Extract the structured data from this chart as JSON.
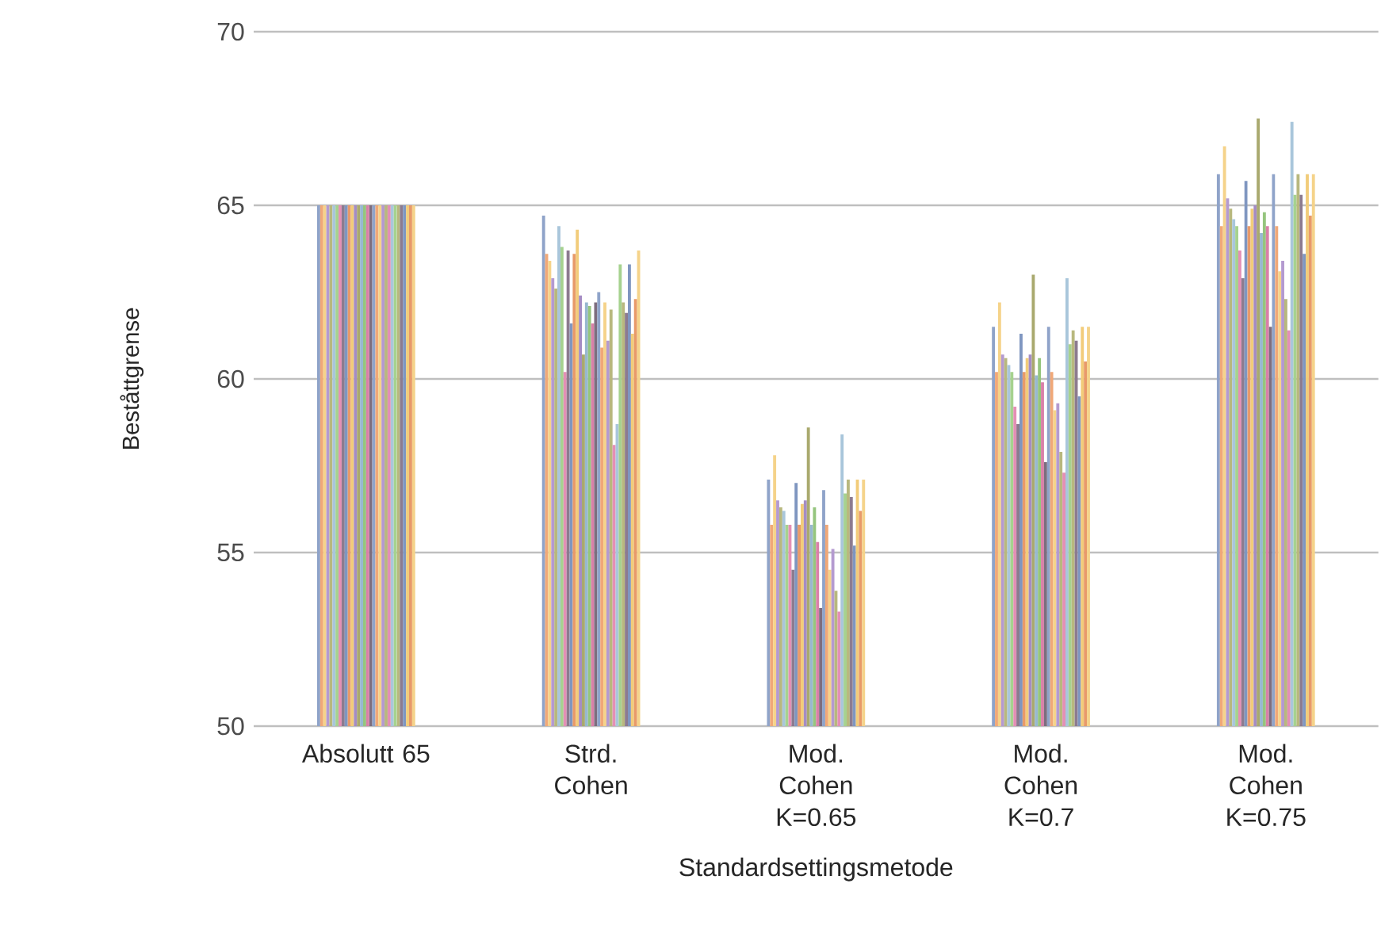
{
  "chart_data": {
    "type": "bar",
    "xlabel": "Standardsettingsmetode",
    "ylabel": "Beståttgrense",
    "categories": [
      "Absolutt 65",
      "Strd. Cohen",
      "Mod. Cohen K=0.65",
      "Mod. Cohen K=0.7",
      "Mod. Cohen K=0.75"
    ],
    "ylim": [
      50,
      70
    ],
    "yticks": [
      50,
      55,
      60,
      65,
      70
    ],
    "grid": "y",
    "series": [
      {
        "color": "#8fa3c9",
        "values": [
          65,
          64.7,
          57.1,
          61.5,
          65.9
        ]
      },
      {
        "color": "#f0a878",
        "values": [
          65,
          63.6,
          55.8,
          60.2,
          64.4
        ]
      },
      {
        "color": "#f5d38a",
        "values": [
          65,
          63.4,
          57.8,
          62.2,
          66.7
        ]
      },
      {
        "color": "#b49ad0",
        "values": [
          65,
          62.9,
          56.5,
          60.7,
          65.2
        ]
      },
      {
        "color": "#b8b87e",
        "values": [
          65,
          62.6,
          56.3,
          60.6,
          64.9
        ]
      },
      {
        "color": "#a9c6db",
        "values": [
          65,
          64.4,
          56.2,
          60.4,
          64.6
        ]
      },
      {
        "color": "#a6d28f",
        "values": [
          65,
          63.8,
          55.8,
          60.2,
          64.4
        ]
      },
      {
        "color": "#e48fb5",
        "values": [
          65,
          60.2,
          55.8,
          59.2,
          63.7
        ]
      },
      {
        "color": "#8c7b8f",
        "values": [
          65,
          63.7,
          54.5,
          58.7,
          62.9
        ]
      },
      {
        "color": "#7f96c0",
        "values": [
          65,
          61.6,
          57.0,
          61.3,
          65.7
        ]
      },
      {
        "color": "#e89a6a",
        "values": [
          65,
          63.6,
          55.8,
          60.2,
          64.4
        ]
      },
      {
        "color": "#f2cc7a",
        "values": [
          65,
          64.3,
          56.4,
          60.6,
          64.9
        ]
      },
      {
        "color": "#a58cc4",
        "values": [
          65,
          62.4,
          56.5,
          60.7,
          65.0
        ]
      },
      {
        "color": "#a9a96e",
        "values": [
          65,
          60.7,
          58.6,
          63.0,
          67.5
        ]
      },
      {
        "color": "#98b8d0",
        "values": [
          65,
          62.2,
          55.8,
          60.1,
          64.2
        ]
      },
      {
        "color": "#95c57e",
        "values": [
          65,
          62.1,
          56.3,
          60.6,
          64.8
        ]
      },
      {
        "color": "#d980a8",
        "values": [
          65,
          61.6,
          55.3,
          59.9,
          64.4
        ]
      },
      {
        "color": "#7d6d7e",
        "values": [
          65,
          62.2,
          53.4,
          57.6,
          61.5
        ]
      },
      {
        "color": "#8fa3c9",
        "values": [
          65,
          62.5,
          56.8,
          61.5,
          65.9
        ]
      },
      {
        "color": "#f0a878",
        "values": [
          65,
          60.9,
          55.8,
          60.2,
          64.4
        ]
      },
      {
        "color": "#f5d38a",
        "values": [
          65,
          62.2,
          54.5,
          59.1,
          63.1
        ]
      },
      {
        "color": "#b49ad0",
        "values": [
          65,
          61.1,
          55.1,
          59.3,
          63.4
        ]
      },
      {
        "color": "#b8b87e",
        "values": [
          65,
          62.0,
          53.9,
          57.9,
          62.3
        ]
      },
      {
        "color": "#e48fb5",
        "values": [
          65,
          58.1,
          53.3,
          57.3,
          61.4
        ]
      },
      {
        "color": "#a9c6db",
        "values": [
          65,
          58.7,
          58.4,
          62.9,
          67.4
        ]
      },
      {
        "color": "#a6d28f",
        "values": [
          65,
          63.3,
          56.7,
          61.0,
          65.3
        ]
      },
      {
        "color": "#b8b87e",
        "values": [
          65,
          62.2,
          57.1,
          61.4,
          65.9
        ]
      },
      {
        "color": "#8c7b8f",
        "values": [
          65,
          61.9,
          56.6,
          61.1,
          65.3
        ]
      },
      {
        "color": "#7f96c0",
        "values": [
          65,
          63.3,
          55.2,
          59.5,
          63.6
        ]
      },
      {
        "color": "#f2cc7a",
        "values": [
          65,
          61.3,
          57.1,
          61.5,
          65.9
        ]
      },
      {
        "color": "#e89a6a",
        "values": [
          65,
          62.3,
          56.2,
          60.5,
          64.7
        ]
      },
      {
        "color": "#f5d38a",
        "values": [
          65,
          63.7,
          57.1,
          61.5,
          65.9
        ]
      }
    ]
  }
}
